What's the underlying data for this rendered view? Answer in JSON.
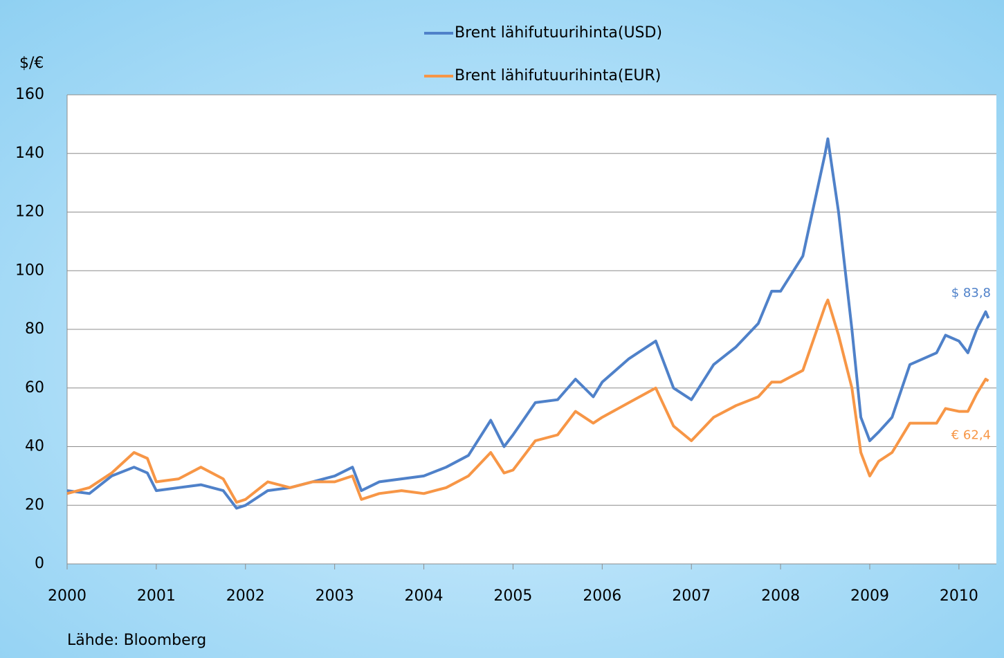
{
  "chart_data": {
    "type": "line",
    "y_label": "$/€",
    "source": "Lähde: Bloomberg",
    "legend": "top",
    "grid": true,
    "x": [
      2000.0,
      2000.25,
      2000.5,
      2000.75,
      2000.9,
      2001.0,
      2001.25,
      2001.5,
      2001.75,
      2001.9,
      2002.0,
      2002.25,
      2002.5,
      2002.75,
      2003.0,
      2003.2,
      2003.3,
      2003.5,
      2003.75,
      2004.0,
      2004.25,
      2004.5,
      2004.75,
      2004.9,
      2005.0,
      2005.25,
      2005.5,
      2005.7,
      2005.9,
      2006.0,
      2006.3,
      2006.6,
      2006.8,
      2007.0,
      2007.25,
      2007.5,
      2007.75,
      2007.9,
      2008.0,
      2008.25,
      2008.5,
      2008.53,
      2008.65,
      2008.8,
      2008.9,
      2009.0,
      2009.1,
      2009.25,
      2009.45,
      2009.6,
      2009.75,
      2009.85,
      2010.0,
      2010.1,
      2010.2,
      2010.3,
      2010.33
    ],
    "series": [
      {
        "name": "Brent lähifutuurihinta(USD)",
        "color": "#4f81c9",
        "values": [
          25,
          24,
          30,
          33,
          31,
          25,
          26,
          27,
          25,
          19,
          20,
          25,
          26,
          28,
          30,
          33,
          25,
          28,
          29,
          30,
          33,
          37,
          49,
          40,
          44,
          55,
          56,
          63,
          57,
          62,
          70,
          76,
          60,
          56,
          68,
          74,
          82,
          93,
          93,
          105,
          140,
          145,
          120,
          80,
          50,
          42,
          45,
          50,
          68,
          70,
          72,
          78,
          76,
          72,
          80,
          86,
          83.8
        ]
      },
      {
        "name": "Brent lähifutuurihinta(EUR)",
        "color": "#f79646",
        "values": [
          24,
          26,
          31,
          38,
          36,
          28,
          29,
          33,
          29,
          21,
          22,
          28,
          26,
          28,
          28,
          30,
          22,
          24,
          25,
          24,
          26,
          30,
          38,
          31,
          32,
          42,
          44,
          52,
          48,
          50,
          55,
          60,
          47,
          42,
          50,
          54,
          57,
          62,
          62,
          66,
          88,
          90,
          78,
          60,
          38,
          30,
          35,
          38,
          48,
          48,
          48,
          53,
          52,
          52,
          58,
          63,
          62.4
        ]
      }
    ],
    "annotations": [
      {
        "text": "$ 83,8",
        "value": 83.8,
        "color": "#4f81c9"
      },
      {
        "text": "€ 62,4",
        "value": 62.4,
        "color": "#f79646"
      }
    ],
    "xlim": [
      2000,
      2010.42
    ],
    "xticks": [
      2000,
      2001,
      2002,
      2003,
      2004,
      2005,
      2006,
      2007,
      2008,
      2009,
      2010
    ],
    "ylim": [
      0,
      160
    ],
    "yticks": [
      0,
      20,
      40,
      60,
      80,
      100,
      120,
      140,
      160
    ]
  }
}
